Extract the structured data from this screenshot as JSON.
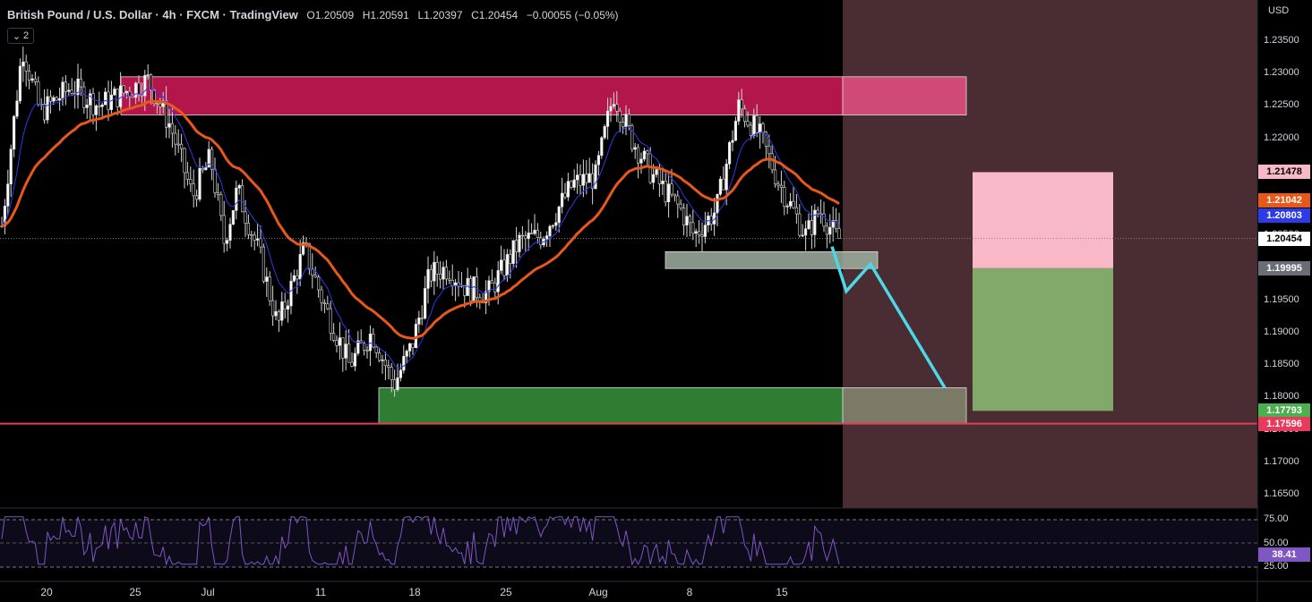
{
  "header": {
    "title": "British Pound / U.S. Dollar · 4h · FXCM · TradingView",
    "open": "O1.20509",
    "high": "H1.20591",
    "low": "L1.20397",
    "close": "C1.20454",
    "change": "−0.00055 (−0.05%)",
    "indicator_count": "2"
  },
  "price_axis": {
    "currency": "USD",
    "ticks": [
      "1.23500",
      "1.23000",
      "1.22500",
      "1.22000",
      "1.21500",
      "1.21000",
      "1.20500",
      "1.20000",
      "1.19500",
      "1.19000",
      "1.18500",
      "1.18000",
      "1.17500",
      "1.17000",
      "1.16500"
    ],
    "tags": [
      {
        "text": "1.21478",
        "bg": "#f8b8c8",
        "fg": "#000000"
      },
      {
        "text": "1.21042",
        "bg": "#e8581a",
        "fg": "#ffffff"
      },
      {
        "text": "1.20803",
        "bg": "#2d3ae8",
        "fg": "#ffffff"
      },
      {
        "text": "1.20454",
        "bg": "#ffffff",
        "fg": "#000000"
      },
      {
        "text": "1.19995",
        "bg": "#6a6d78",
        "fg": "#ffffff"
      },
      {
        "text": "1.17793",
        "bg": "#4caf50",
        "fg": "#ffffff"
      },
      {
        "text": "1.17596",
        "bg": "#e83a5a",
        "fg": "#ffffff"
      }
    ]
  },
  "rsi_axis": {
    "ticks": [
      "75.00",
      "50.00",
      "25.00"
    ],
    "value": "38.41",
    "value_bg": "#7e57c2"
  },
  "time_axis": {
    "labels": [
      "20",
      "25",
      "Jul",
      "11",
      "18",
      "25",
      "Aug",
      "8",
      "15"
    ]
  },
  "colors": {
    "background": "#000000",
    "supply_zone": "#b3164a",
    "demand_zone": "#2e7d32",
    "forecast_line": "#4dd8e8",
    "ema_orange": "#e8581a",
    "ema_blue": "#2d3ae8",
    "horizontal_line": "#e83a5a",
    "projection_area": "#4a2c33",
    "stop_box": "#f8b8c8",
    "target_box": "#82a86a",
    "rsi_line": "#7e57c2"
  },
  "chart_data": {
    "type": "candlestick",
    "price_range": [
      1.1625,
      1.2375
    ],
    "reference_levels": {
      "last_price": 1.20454,
      "horizontal_line": 1.17596,
      "supply_zone": [
        1.2236,
        1.2295
      ],
      "demand_zone": [
        1.17596,
        1.1815
      ],
      "small_zone": [
        1.1999,
        1.2025
      ],
      "stop_level": 1.21478,
      "entry_level": 1.19995,
      "target_level": 1.17793
    },
    "forecast_path": [
      1.2033,
      1.1964,
      1.2006,
      1.1815
    ],
    "rsi_levels": [
      75,
      50,
      25
    ],
    "rsi_last": 38.41
  }
}
